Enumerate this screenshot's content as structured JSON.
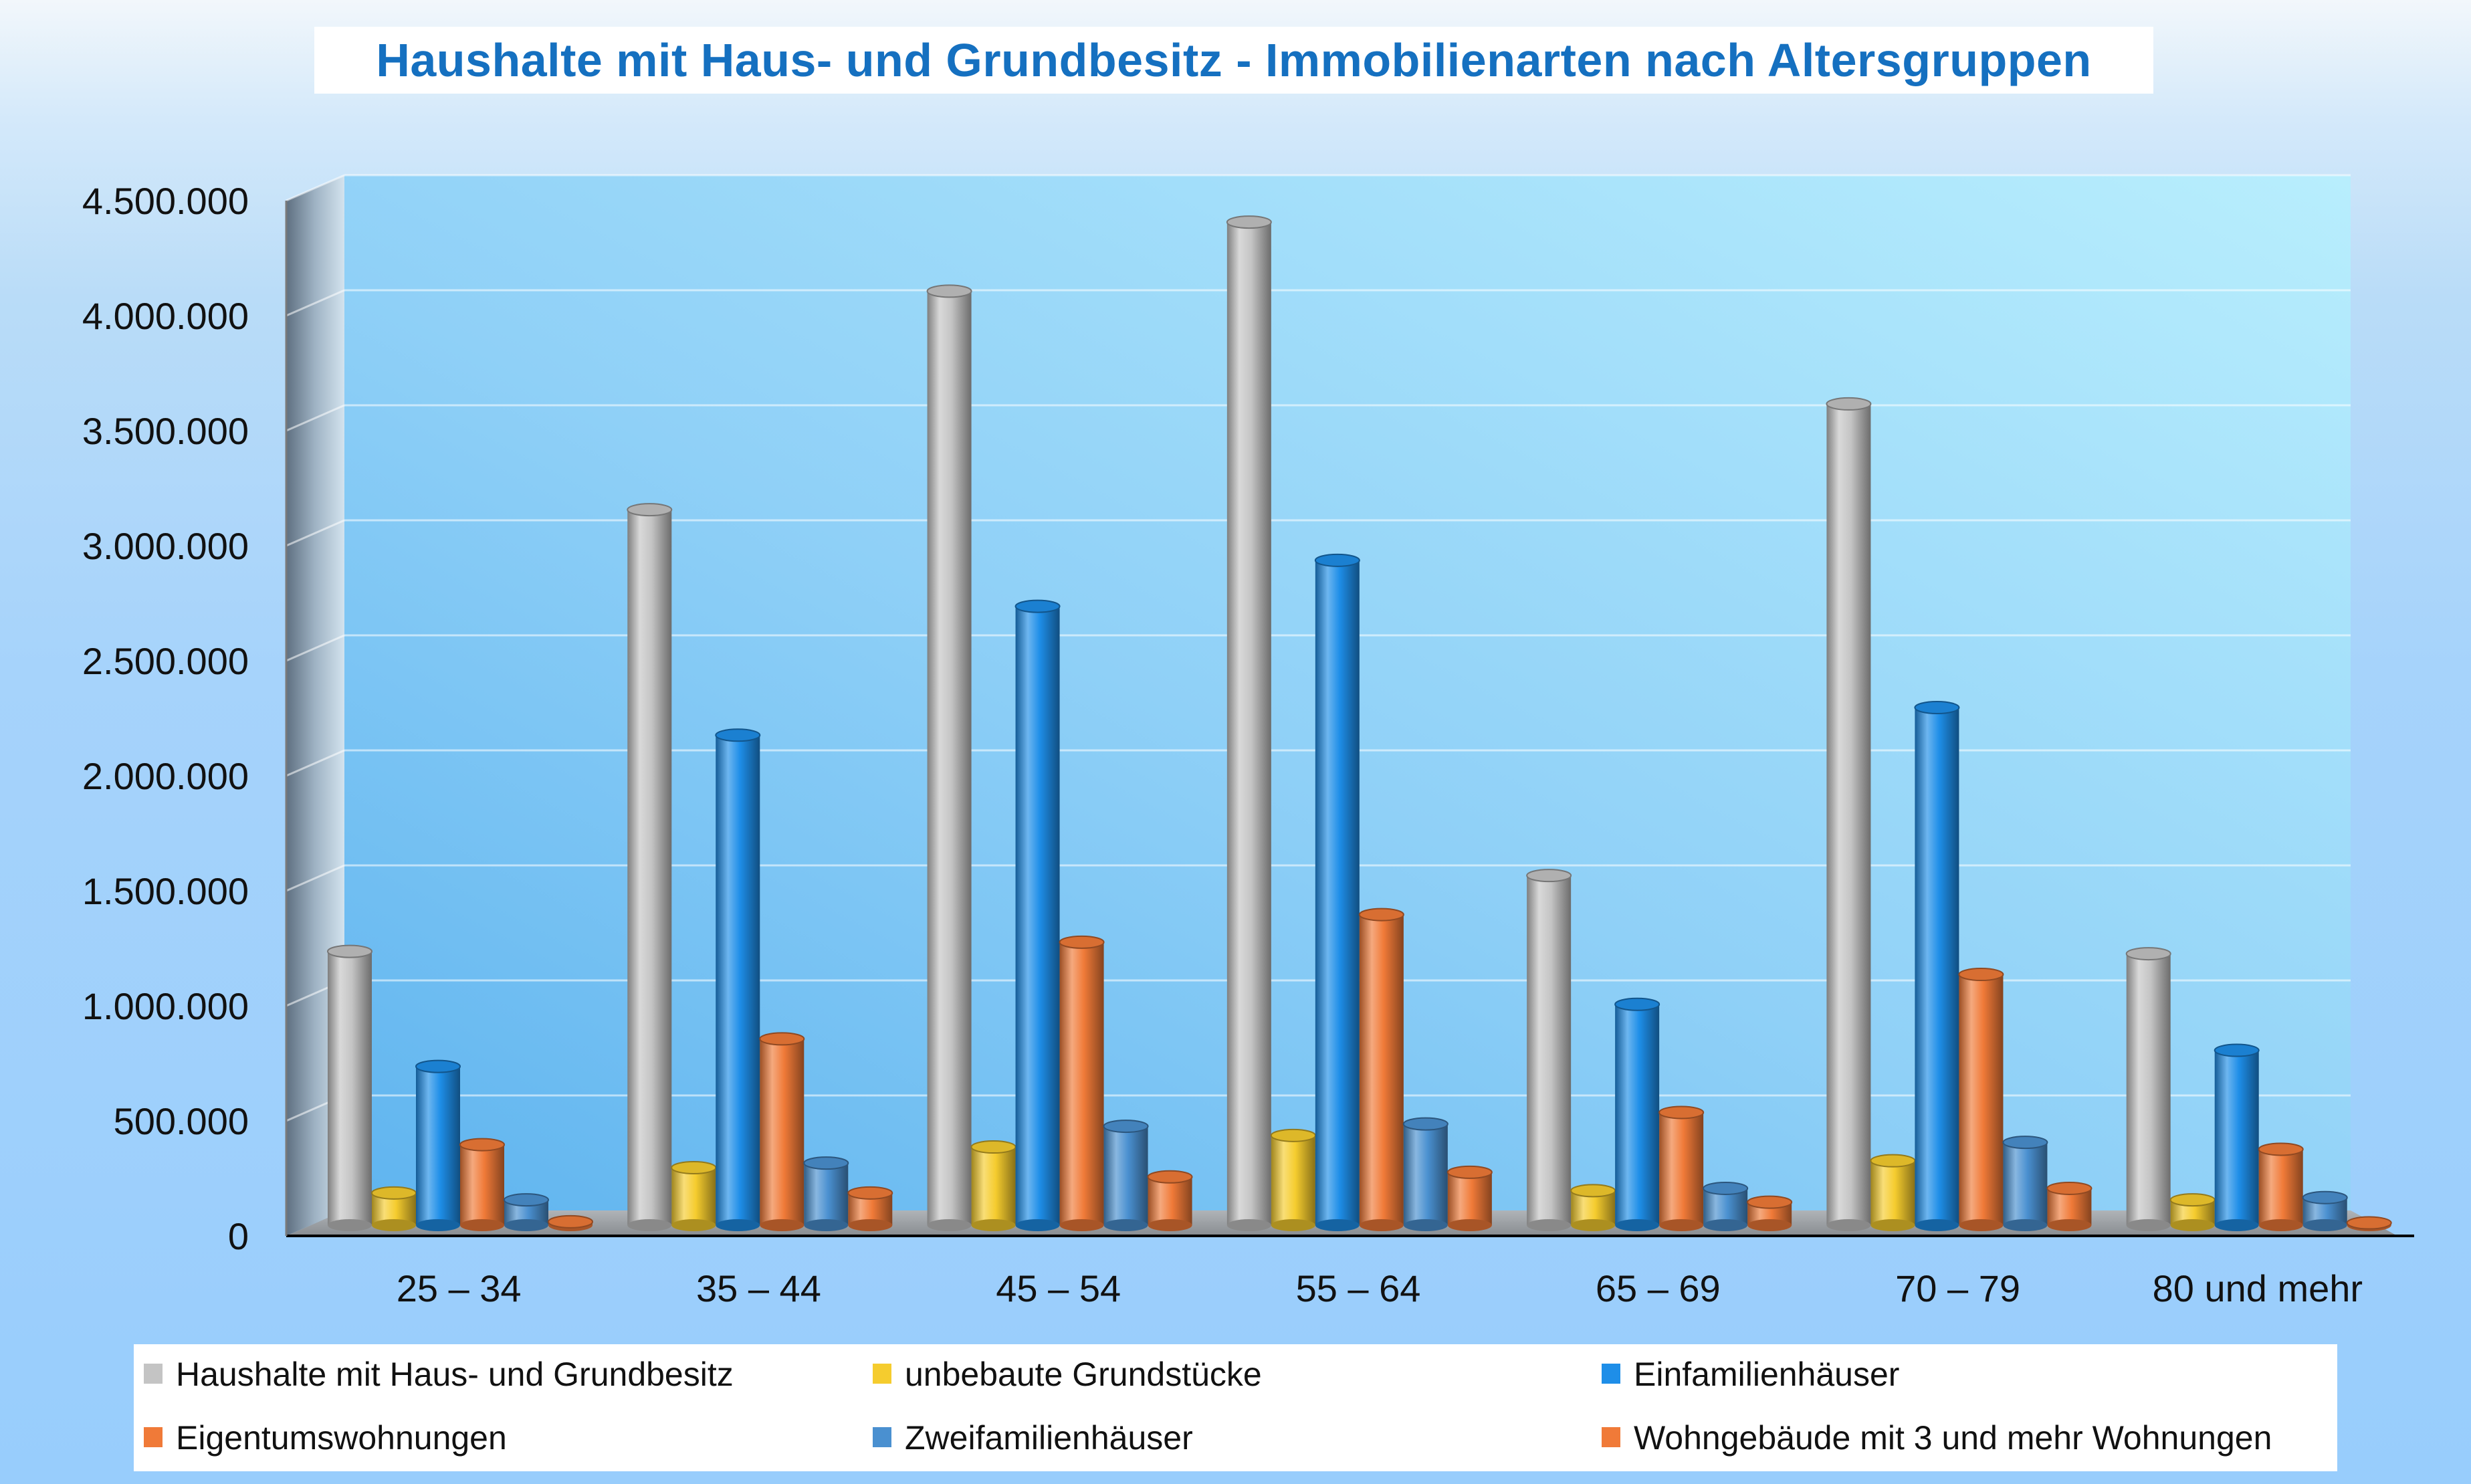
{
  "chart_data": {
    "type": "bar",
    "title": "Haushalte mit Haus- und Grundbesitz - Immobilienarten nach Altersgruppen",
    "categories": [
      "25 – 34",
      "35 – 44",
      "45 – 54",
      "55 – 64",
      "65 – 69",
      "70 – 79",
      "80 und mehr"
    ],
    "ylim": [
      0,
      4500000
    ],
    "yticks": [
      {
        "value": 0,
        "label": "0"
      },
      {
        "value": 500000,
        "label": "500.000"
      },
      {
        "value": 1000000,
        "label": "1.000.000"
      },
      {
        "value": 1500000,
        "label": "1.500.000"
      },
      {
        "value": 2000000,
        "label": "2.000.000"
      },
      {
        "value": 2500000,
        "label": "2.500.000"
      },
      {
        "value": 3000000,
        "label": "3.000.000"
      },
      {
        "value": 3500000,
        "label": "3.500.000"
      },
      {
        "value": 4000000,
        "label": "4.000.000"
      },
      {
        "value": 4500000,
        "label": "4.500.000"
      }
    ],
    "grid": true,
    "legend_position": "bottom",
    "series": [
      {
        "name": "Haushalte mit Haus- und Grundbesitz",
        "color": "#c4c4c4",
        "values": [
          1190000,
          3110000,
          4060000,
          4360000,
          1520000,
          3570000,
          1180000
        ]
      },
      {
        "name": "unbebaute Grundstücke",
        "color": "#f5cc2e",
        "values": [
          140000,
          250000,
          340000,
          390000,
          150000,
          280000,
          110000
        ]
      },
      {
        "name": "Einfamilienhäuser",
        "color": "#1e8ee8",
        "values": [
          690000,
          2130000,
          2690000,
          2890000,
          960000,
          2250000,
          760000
        ]
      },
      {
        "name": "Eigentumswohnungen",
        "color": "#f07a38",
        "values": [
          350000,
          810000,
          1230000,
          1350000,
          490000,
          1090000,
          330000
        ]
      },
      {
        "name": "Zweifamilienhäuser",
        "color": "#4a90d0",
        "values": [
          110000,
          270000,
          430000,
          440000,
          160000,
          360000,
          120000
        ]
      },
      {
        "name": "Wohngebäude mit 3 und mehr Wohnungen",
        "color": "#f07a38",
        "values": [
          15000,
          140000,
          210000,
          230000,
          100000,
          160000,
          10000
        ]
      }
    ]
  }
}
